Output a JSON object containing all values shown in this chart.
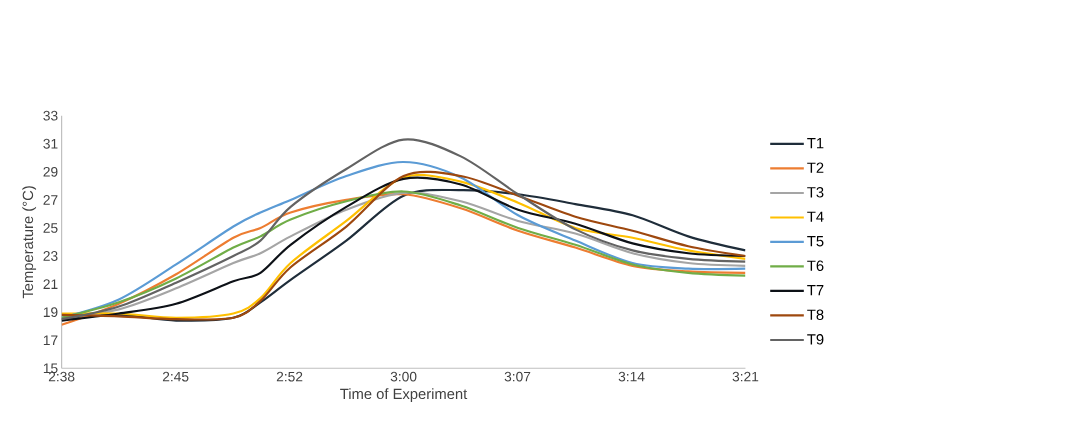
{
  "chart_data": {
    "type": "line",
    "xlabel": "Time of Experiment",
    "ylabel": "Temperature (°C)",
    "x": [
      2.6333,
      2.6933,
      2.7533,
      2.8133,
      2.8417,
      2.8733,
      2.9317,
      2.9917,
      3.0517,
      3.1117,
      3.1717,
      3.2317,
      3.29,
      3.35
    ],
    "xlim": [
      2.6333,
      3.35
    ],
    "xticks": [
      {
        "value": 2.6333,
        "label": "2:38"
      },
      {
        "value": 2.7528,
        "label": "2:45"
      },
      {
        "value": 2.8722,
        "label": "2:52"
      },
      {
        "value": 2.9917,
        "label": "3:00"
      },
      {
        "value": 3.1111,
        "label": "3:07"
      },
      {
        "value": 3.2306,
        "label": "3:14"
      },
      {
        "value": 3.35,
        "label": "3:21"
      }
    ],
    "ylim": [
      15,
      33
    ],
    "yticks": [
      15,
      17,
      19,
      21,
      23,
      25,
      27,
      29,
      31,
      33
    ],
    "grid": false,
    "legend": "right",
    "marker": "none",
    "line_style": "solid",
    "series": [
      {
        "name": "T1",
        "color": "#1f2d3a",
        "values": [
          18.5,
          18.8,
          18.4,
          18.6,
          19.7,
          21.3,
          24.1,
          27.3,
          27.7,
          27.4,
          26.7,
          25.9,
          24.4,
          23.4
        ]
      },
      {
        "name": "T2",
        "color": "#ed7d31",
        "values": [
          18.1,
          19.6,
          21.7,
          24.3,
          25.0,
          26.1,
          27.0,
          27.4,
          26.4,
          24.8,
          23.6,
          22.3,
          21.9,
          21.8
        ]
      },
      {
        "name": "T3",
        "color": "#a5a5a5",
        "values": [
          18.6,
          19.2,
          20.7,
          22.5,
          23.2,
          24.4,
          26.3,
          27.5,
          26.9,
          25.5,
          24.6,
          23.2,
          22.5,
          22.3
        ]
      },
      {
        "name": "T4",
        "color": "#ffc000",
        "values": [
          18.9,
          18.9,
          18.6,
          18.9,
          20.0,
          22.5,
          25.5,
          28.6,
          28.3,
          26.8,
          25.0,
          24.3,
          23.4,
          22.8
        ]
      },
      {
        "name": "T5",
        "color": "#5b9bd5",
        "values": [
          18.6,
          19.9,
          22.4,
          25.1,
          26.1,
          27.0,
          28.7,
          29.7,
          28.6,
          25.9,
          24.1,
          22.5,
          22.1,
          22.1
        ]
      },
      {
        "name": "T6",
        "color": "#70ad47",
        "values": [
          18.6,
          19.7,
          21.4,
          23.6,
          24.4,
          25.6,
          26.9,
          27.6,
          26.6,
          25.0,
          23.8,
          22.4,
          21.8,
          21.6
        ]
      },
      {
        "name": "T7",
        "color": "#0d1117",
        "values": [
          18.4,
          18.9,
          19.6,
          21.2,
          21.8,
          23.8,
          26.5,
          28.5,
          28.1,
          26.3,
          25.3,
          23.9,
          23.2,
          23.0
        ]
      },
      {
        "name": "T8",
        "color": "#9e480e",
        "values": [
          18.8,
          18.7,
          18.5,
          18.6,
          19.8,
          22.2,
          25.1,
          28.7,
          28.7,
          27.3,
          25.8,
          24.8,
          23.7,
          23.0
        ]
      },
      {
        "name": "T9",
        "color": "#636363",
        "values": [
          18.5,
          19.4,
          21.1,
          23.0,
          24.1,
          26.5,
          29.2,
          31.3,
          30.1,
          27.4,
          24.9,
          23.4,
          22.8,
          22.6
        ]
      }
    ]
  }
}
